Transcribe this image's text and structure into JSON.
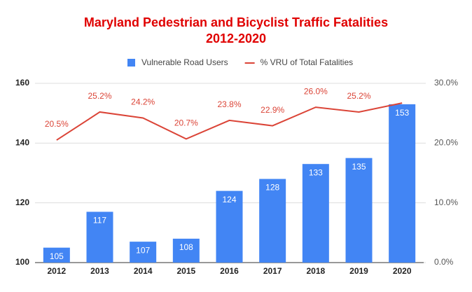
{
  "chart_data": {
    "type": "bar-line",
    "title_lines": [
      "Maryland Pedestrian and Bicyclist Traffic Fatalities",
      "2012-2020"
    ],
    "categories": [
      "2012",
      "2013",
      "2014",
      "2015",
      "2016",
      "2017",
      "2018",
      "2019",
      "2020"
    ],
    "series": [
      {
        "name": "Vulnerable Road Users",
        "color": "#4285f4",
        "type": "bar",
        "values": [
          105,
          117,
          107,
          108,
          124,
          128,
          133,
          135,
          153
        ]
      },
      {
        "name": "% VRU of Total Fatalities",
        "color": "#db4437",
        "type": "line",
        "axis": "y2",
        "values": [
          20.5,
          25.2,
          24.2,
          20.7,
          23.8,
          22.9,
          26.0,
          25.2,
          26.7
        ],
        "value_labels": [
          "20.5%",
          "25.2%",
          "24.2%",
          "20.7%",
          "23.8%",
          "22.9%",
          "26.0%",
          "25.2%",
          null
        ]
      }
    ],
    "ylim": [
      100,
      160
    ],
    "yticks": [
      100,
      120,
      140,
      160
    ],
    "y2lim": [
      0,
      30
    ],
    "y2ticks": [
      {
        "value": 0,
        "label": "0.0%"
      },
      {
        "value": 10,
        "label": "10.0%"
      },
      {
        "value": 20,
        "label": "20.0%"
      },
      {
        "value": 30,
        "label": "30.0%"
      }
    ],
    "grid": true
  }
}
